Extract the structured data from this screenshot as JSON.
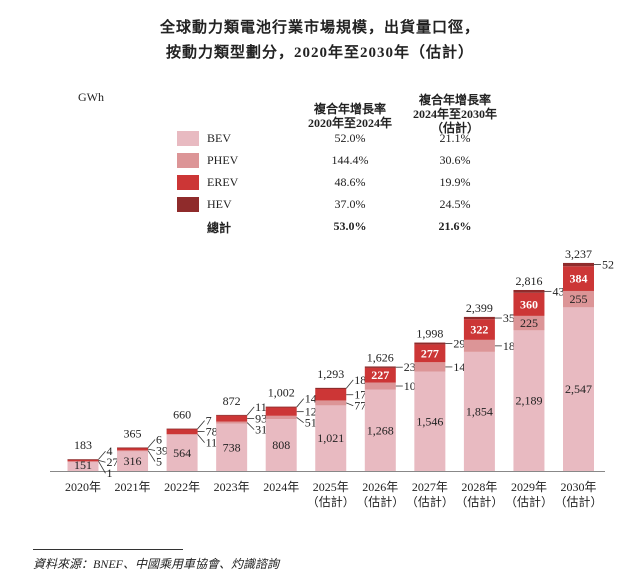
{
  "title_line1": "全球動力類電池行業市場規模，出貨量口徑，",
  "title_line2": "按動力類型劃分，2020年至2030年（估計）",
  "unit": "GWh",
  "table": {
    "col1_header": [
      "複合年增長率",
      "2020年至2024年"
    ],
    "col2_header": [
      "複合年增長率",
      "2024年至2030年",
      "（估計）"
    ],
    "rows": [
      {
        "name": "BEV",
        "color": "#e8bac1",
        "cagr_2020_2024": "52.0%",
        "cagr_2024_2030": "21.1%"
      },
      {
        "name": "PHEV",
        "color": "#dc9597",
        "cagr_2020_2024": "144.4%",
        "cagr_2024_2030": "30.6%"
      },
      {
        "name": "EREV",
        "color": "#cc3636",
        "cagr_2020_2024": "48.6%",
        "cagr_2024_2030": "19.9%"
      },
      {
        "name": "HEV",
        "color": "#8f2b2b",
        "cagr_2020_2024": "37.0%",
        "cagr_2024_2030": "24.5%"
      }
    ],
    "total": {
      "name": "總計",
      "cagr_2020_2024": "53.0%",
      "cagr_2024_2030": "21.6%"
    }
  },
  "chart_data": {
    "type": "bar",
    "stacked": true,
    "title": "全球動力類電池行業市場規模，出貨量口徑，按動力類型劃分，2020年至2030年（估計）",
    "ylabel": "GWh",
    "categories": [
      [
        "2020年"
      ],
      [
        "2021年"
      ],
      [
        "2022年"
      ],
      [
        "2023年"
      ],
      [
        "2024年"
      ],
      [
        "2025年",
        "（估計）"
      ],
      [
        "2026年",
        "（估計）"
      ],
      [
        "2027年",
        "（估計）"
      ],
      [
        "2028年",
        "（估計）"
      ],
      [
        "2029年",
        "（估計）"
      ],
      [
        "2030年",
        "（估計）"
      ]
    ],
    "series": [
      {
        "name": "BEV",
        "color": "#e8bac1",
        "values": [
          151,
          316,
          564,
          738,
          808,
          1021,
          1268,
          1546,
          1854,
          2189,
          2547
        ]
      },
      {
        "name": "PHEV",
        "color": "#dc9597",
        "values": [
          1,
          5,
          11,
          31,
          51,
          77,
          109,
          147,
          187,
          225,
          255
        ]
      },
      {
        "name": "EREV",
        "color": "#cc3636",
        "values": [
          27,
          39,
          78,
          93,
          129,
          178,
          227,
          277,
          322,
          360,
          384
        ]
      },
      {
        "name": "HEV",
        "color": "#8f2b2b",
        "values": [
          4,
          6,
          7,
          11,
          14,
          18,
          23,
          29,
          35,
          43,
          52
        ]
      }
    ],
    "totals": [
      "183",
      "365",
      "660",
      "872",
      "1,002",
      "1,293",
      "1,626",
      "1,998",
      "2,399",
      "2,816",
      "3,237"
    ],
    "ylim": [
      0,
      3300
    ],
    "grid": false,
    "legend": "top"
  },
  "source": "資料來源：BNEF、中國乘用車協會、灼識諮詢"
}
